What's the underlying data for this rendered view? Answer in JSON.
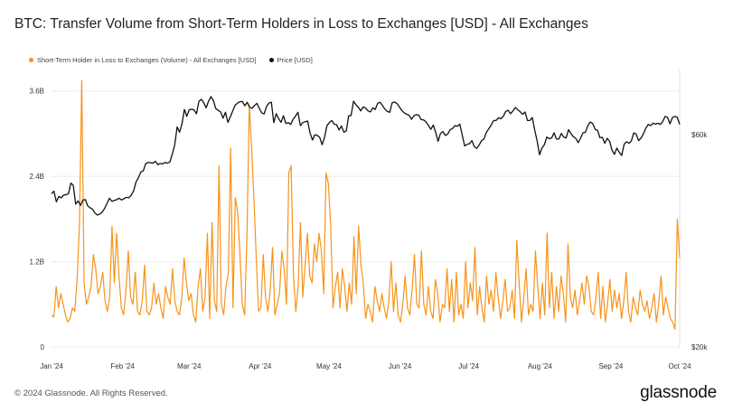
{
  "title": "BTC: Transfer Volume from Short-Term Holders in Loss to Exchanges [USD] - All Exchanges",
  "footer": "© 2024 Glassnode. All Rights Reserved.",
  "brand": "glassnode",
  "colors": {
    "volume": "#f7931a",
    "price": "#111111",
    "grid": "#ececec",
    "axis_text": "#333333"
  },
  "chart_data": {
    "type": "line",
    "x_start": "2024-01-01",
    "x_end": "2024-10-01",
    "x_tick_labels": [
      "Jan '24",
      "Feb '24",
      "Mar '24",
      "Apr '24",
      "May '24",
      "Jun '24",
      "Jul '24",
      "Aug '24",
      "Sep '24",
      "Oct '24"
    ],
    "y_left": {
      "ticks": [
        0,
        1.2,
        2.4,
        3.6
      ],
      "tick_labels": [
        "0",
        "1.2B",
        "2.4B",
        "3.6B"
      ],
      "range": [
        0,
        3.8
      ],
      "unit": "B USD"
    },
    "y_right": {
      "tick_labels": [
        "$20k",
        "$60k"
      ],
      "ticks": [
        20000,
        60000
      ],
      "scale": "log",
      "range": [
        20000,
        81000
      ]
    },
    "grid": true,
    "legend_position": "top-left",
    "series": [
      {
        "name": "Short-Term Holder in Loss to Exchanges (Volume) - All Exchanges [USD]",
        "axis": "left",
        "values": [
          0.45,
          0.42,
          0.85,
          0.55,
          0.75,
          0.6,
          0.45,
          0.35,
          0.4,
          0.55,
          0.5,
          0.95,
          1.7,
          3.75,
          0.9,
          0.6,
          0.7,
          0.85,
          1.3,
          1.1,
          0.75,
          0.85,
          1.05,
          0.65,
          0.5,
          0.7,
          1.7,
          0.9,
          1.6,
          1.0,
          0.55,
          0.45,
          0.8,
          1.35,
          0.7,
          0.6,
          1.05,
          0.5,
          0.45,
          0.65,
          1.15,
          0.5,
          0.45,
          0.55,
          0.9,
          0.6,
          0.75,
          0.55,
          0.4,
          0.85,
          0.7,
          0.6,
          1.1,
          0.65,
          0.5,
          0.45,
          0.7,
          1.25,
          0.9,
          0.65,
          0.75,
          0.45,
          0.35,
          0.85,
          1.1,
          0.5,
          0.7,
          1.6,
          0.4,
          1.75,
          0.65,
          0.5,
          2.55,
          0.6,
          0.45,
          0.85,
          1.05,
          2.8,
          0.55,
          2.1,
          1.9,
          1.3,
          0.6,
          0.45,
          1.55,
          3.4,
          2.8,
          2.1,
          1.25,
          0.5,
          0.55,
          1.3,
          0.7,
          0.5,
          0.8,
          1.4,
          0.45,
          0.6,
          0.75,
          1.35,
          1.1,
          0.6,
          2.45,
          2.55,
          1.0,
          0.5,
          0.85,
          1.75,
          0.7,
          1.15,
          1.6,
          1.0,
          0.9,
          1.45,
          1.2,
          1.6,
          1.35,
          0.75,
          2.45,
          2.3,
          1.7,
          0.55,
          0.85,
          1.05,
          0.55,
          1.1,
          0.85,
          0.5,
          0.9,
          0.6,
          1.55,
          0.75,
          1.7,
          1.15,
          0.9,
          0.4,
          0.6,
          0.5,
          0.35,
          0.85,
          0.65,
          0.5,
          0.75,
          0.55,
          0.4,
          0.65,
          1.2,
          0.5,
          0.9,
          0.45,
          0.35,
          0.6,
          1.0,
          0.55,
          0.45,
          0.8,
          1.3,
          0.6,
          0.55,
          1.35,
          0.6,
          0.45,
          0.85,
          0.5,
          0.4,
          0.95,
          0.75,
          0.35,
          0.6,
          0.55,
          1.1,
          0.5,
          0.95,
          0.35,
          1.05,
          0.45,
          0.6,
          0.4,
          1.2,
          0.55,
          0.9,
          0.65,
          1.4,
          0.45,
          0.85,
          0.55,
          0.35,
          1.0,
          0.6,
          0.8,
          0.5,
          1.05,
          0.7,
          0.4,
          0.65,
          0.95,
          0.5,
          0.55,
          0.8,
          0.4,
          1.5,
          0.9,
          0.35,
          0.7,
          1.1,
          0.45,
          0.6,
          0.5,
          1.35,
          0.85,
          0.4,
          0.9,
          0.45,
          1.6,
          0.55,
          1.05,
          0.4,
          0.85,
          0.5,
          1.0,
          0.75,
          0.35,
          1.45,
          0.7,
          0.55,
          0.8,
          0.45,
          0.65,
          0.9,
          0.6,
          1.0,
          0.85,
          0.5,
          0.45,
          0.7,
          1.05,
          0.4,
          0.85,
          0.35,
          0.6,
          0.95,
          0.5,
          0.8,
          0.55,
          0.75,
          0.4,
          0.65,
          1.05,
          0.5,
          0.35,
          0.7,
          0.55,
          0.45,
          0.8,
          0.6,
          0.5,
          0.65,
          0.4,
          0.55,
          0.75,
          0.35,
          0.6,
          1.0,
          0.45,
          0.7,
          0.55,
          0.4,
          0.35,
          0.25,
          1.8,
          1.25
        ]
      },
      {
        "name": "Price [USD]",
        "axis": "right",
        "values": [
          44200,
          44800,
          42400,
          43600,
          43300,
          43900,
          44000,
          44200,
          46700,
          46200,
          41900,
          42600,
          41600,
          42800,
          42900,
          41500,
          41100,
          40800,
          40000,
          39600,
          39800,
          40200,
          41000,
          42100,
          43200,
          42500,
          42700,
          42900,
          43200,
          42800,
          43100,
          43400,
          43300,
          43900,
          44900,
          47000,
          48100,
          49500,
          49800,
          51700,
          52000,
          51900,
          51800,
          52300,
          51400,
          51700,
          51600,
          52000,
          51800,
          52100,
          54300,
          57000,
          62500,
          60800,
          63500,
          68400,
          66000,
          68300,
          68500,
          68200,
          66900,
          71300,
          72100,
          70800,
          69000,
          71400,
          73100,
          71600,
          68700,
          68100,
          67500,
          65400,
          67400,
          64000,
          65800,
          67900,
          69900,
          70700,
          71200,
          71300,
          69700,
          71000,
          69200,
          68800,
          69800,
          70600,
          68800,
          67200,
          66800,
          69500,
          70700,
          71000,
          63900,
          66900,
          65200,
          64000,
          66200,
          63600,
          63900,
          63300,
          65000,
          66100,
          67400,
          62900,
          63900,
          64200,
          64400,
          60600,
          58400,
          60000,
          59800,
          59200,
          57000,
          59200,
          62900,
          63900,
          64600,
          63400,
          63200,
          61500,
          62800,
          60800,
          61200,
          66200,
          66300,
          71400,
          70100,
          69200,
          67900,
          69300,
          68900,
          67900,
          67500,
          69000,
          68400,
          70600,
          71000,
          69800,
          68500,
          67700,
          67400,
          70800,
          71100,
          70500,
          69300,
          68000,
          67200,
          66700,
          66400,
          65000,
          66200,
          66600,
          66400,
          64900,
          64800,
          64100,
          63000,
          61700,
          63100,
          60800,
          58000,
          60400,
          61000,
          59800,
          60200,
          61600,
          62000,
          62900,
          62700,
          63400,
          59900,
          56600,
          57100,
          57300,
          58200,
          56400,
          55900,
          56900,
          58200,
          58700,
          60800,
          61900,
          63100,
          64600,
          64600,
          65500,
          65200,
          66000,
          67700,
          68100,
          66900,
          67900,
          69100,
          68300,
          67600,
          66700,
          67500,
          64600,
          64600,
          65600,
          61500,
          58100,
          54100,
          56000,
          57000,
          59300,
          58800,
          59000,
          60600,
          58700,
          58700,
          60400,
          59300,
          59000,
          61600,
          60400,
          59400,
          58900,
          57600,
          59000,
          60600,
          60800,
          62900,
          64100,
          63600,
          61700,
          61400,
          59100,
          59200,
          57400,
          58900,
          58000,
          55400,
          54200,
          56000,
          54800,
          53900,
          57100,
          57900,
          57400,
          58100,
          60600,
          60200,
          58200,
          59000,
          60300,
          62100,
          63300,
          62900,
          63700,
          63400,
          63700,
          63300,
          64300,
          66000,
          65600,
          63500,
          65600,
          66000,
          65700,
          63300
        ]
      }
    ]
  }
}
